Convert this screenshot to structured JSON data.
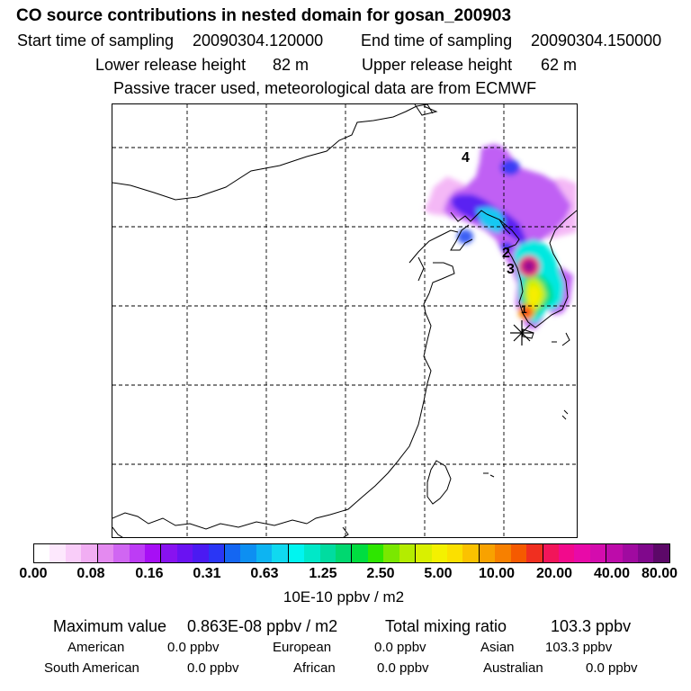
{
  "header": {
    "title": "CO  source contributions in nested domain for gosan_200903",
    "start_label": "Start time of sampling",
    "start_value": "20090304.120000",
    "end_label": "End time of sampling",
    "end_value": "20090304.150000",
    "lower_label": "Lower release height",
    "lower_value": "82 m",
    "upper_label": "Upper release height",
    "upper_value": "62 m",
    "tracer_note": "Passive tracer used, meteorological data are from ECMWF"
  },
  "map": {
    "markers": [
      "4",
      "2",
      "3",
      "1"
    ]
  },
  "colorbar": {
    "ticks": [
      "0.00",
      "0.08",
      "0.16",
      "0.31",
      "0.63",
      "1.25",
      "2.50",
      "5.00",
      "10.00",
      "20.00",
      "40.00",
      "80.00"
    ],
    "unit": "10E-10 ppbv / m2",
    "colors": [
      "#ffffff",
      "#fde8fd",
      "#f9cdf9",
      "#f1aef3",
      "#e48af0",
      "#d066f2",
      "#bd3cf5",
      "#a70ff5",
      "#8812f0",
      "#6a12f2",
      "#4b1af2",
      "#2a36f5",
      "#1466f2",
      "#0d8ff2",
      "#0db4f2",
      "#10d9f0",
      "#00f5f0",
      "#00e8c8",
      "#00dca0",
      "#00d870",
      "#00dd40",
      "#2ee600",
      "#7ae800",
      "#b4ec00",
      "#d9f000",
      "#f4f100",
      "#fbe000",
      "#fbc200",
      "#f8a200",
      "#f78000",
      "#f55a00",
      "#f02f20",
      "#f2155a",
      "#f20a8c",
      "#e80aa8",
      "#d40cae",
      "#bd0caa",
      "#a00aa0",
      "#80088c",
      "#5c0868"
    ]
  },
  "summary": {
    "max_label": "Maximum value",
    "max_value": "0.863E-08 ppbv / m2",
    "total_label": "Total mixing ratio",
    "total_value": "103.3 ppbv",
    "regions": [
      {
        "name": "American",
        "value": "0.0 ppbv"
      },
      {
        "name": "European",
        "value": "0.0 ppbv"
      },
      {
        "name": "Asian",
        "value": "103.3 ppbv"
      },
      {
        "name": "South American",
        "value": "0.0 ppbv"
      },
      {
        "name": "African",
        "value": "0.0 ppbv"
      },
      {
        "name": "Australian",
        "value": "0.0 ppbv"
      }
    ]
  }
}
